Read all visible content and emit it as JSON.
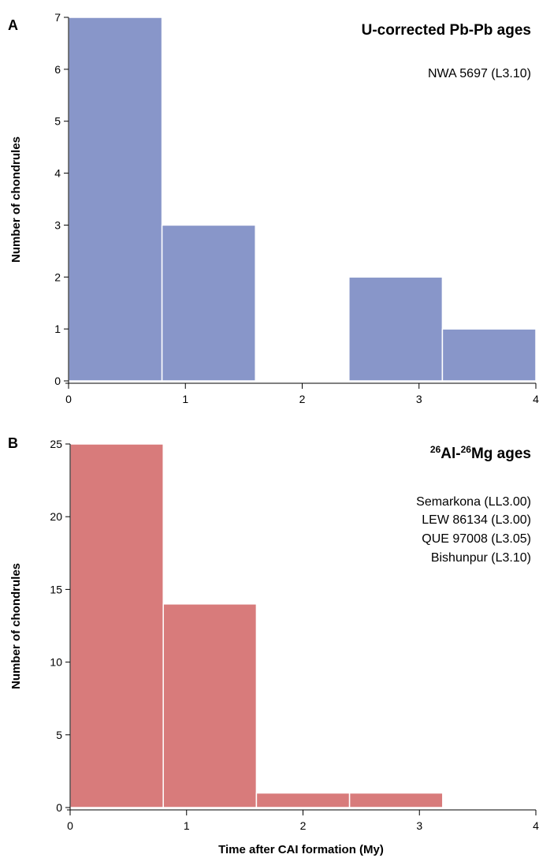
{
  "chart_data": [
    {
      "panel_label": "A",
      "type": "bar",
      "title": "U-corrected Pb-Pb ages",
      "annotations": [
        "NWA 5697 (L3.10)"
      ],
      "xlabel": "",
      "ylabel": "Number of chondrules",
      "bin_edges": [
        0,
        0.8,
        1.6,
        2.4,
        3.2,
        4.0
      ],
      "values": [
        7,
        3,
        0,
        2,
        1
      ],
      "xlim": [
        0,
        4
      ],
      "ylim": [
        0,
        7
      ],
      "xticks": [
        0,
        1,
        2,
        3,
        4
      ],
      "yticks": [
        0,
        1,
        2,
        3,
        4,
        5,
        6,
        7
      ],
      "bar_color": "#8896c9",
      "grid": false
    },
    {
      "panel_label": "B",
      "type": "bar",
      "title_sup1": "26",
      "title_part1": "Al-",
      "title_sup2": "26",
      "title_part2": "Mg ages",
      "annotations": [
        "Semarkona (LL3.00)",
        "LEW 86134 (L3.00)",
        "QUE 97008 (L3.05)",
        "Bishunpur (L3.10)"
      ],
      "xlabel": "Time after CAI formation (My)",
      "ylabel": "Number of chondrules",
      "bin_edges": [
        0,
        0.8,
        1.6,
        2.4,
        3.2,
        4.0
      ],
      "values": [
        25,
        14,
        1,
        1,
        0
      ],
      "xlim": [
        0,
        4
      ],
      "ylim": [
        0,
        25
      ],
      "xticks": [
        0,
        1,
        2,
        3,
        4
      ],
      "yticks": [
        0,
        5,
        10,
        15,
        20,
        25
      ],
      "bar_color": "#d87b7b",
      "grid": false
    }
  ]
}
